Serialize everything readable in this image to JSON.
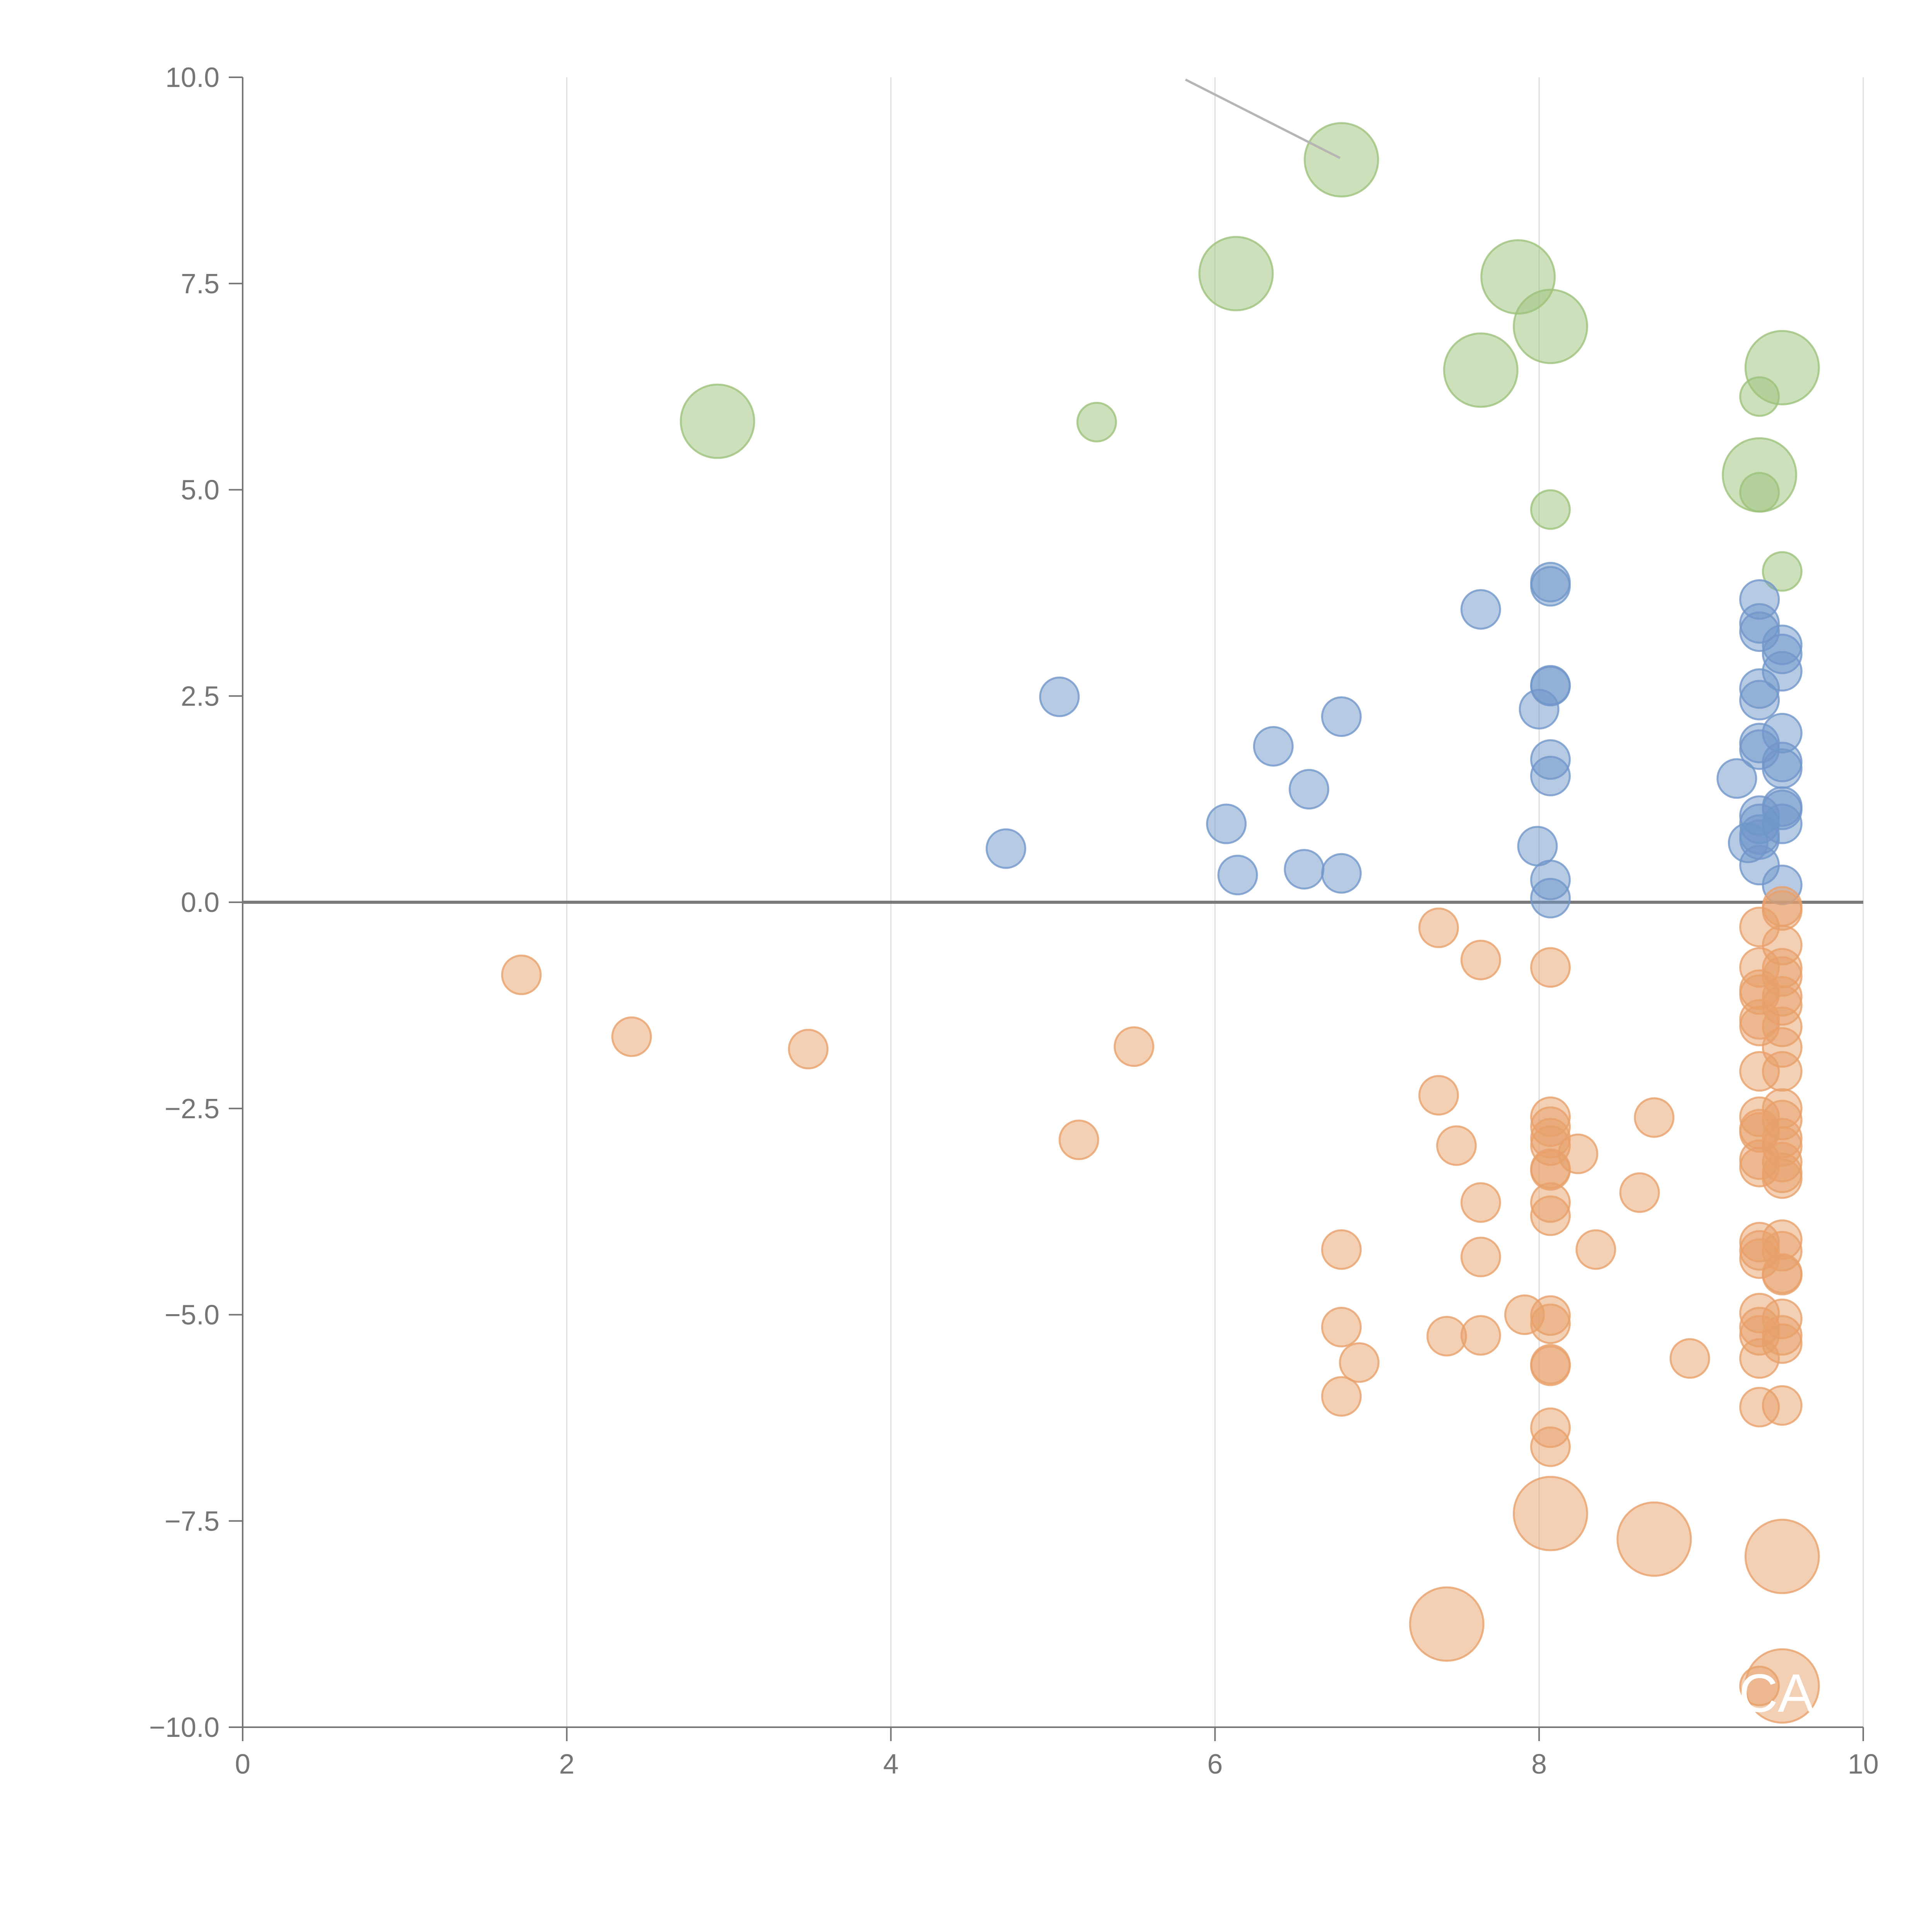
{
  "chart_data": {
    "type": "scatter",
    "title": "",
    "xlabel": "",
    "ylabel": "",
    "xlim": [
      0,
      10
    ],
    "ylim": [
      -10,
      10
    ],
    "x_ticks": [
      0,
      2,
      4,
      6,
      8,
      10
    ],
    "x_tick_labels": [
      "0",
      "2",
      "4",
      "6",
      "8",
      "10"
    ],
    "y_ticks": [
      10,
      7.5,
      5,
      2.5,
      0,
      -2.5,
      -5,
      -7.5,
      -10
    ],
    "y_tick_labels": [
      "10.0",
      "7.5",
      "5.0",
      "2.5",
      "0.0",
      "−2.5",
      "−5.0",
      "−7.5",
      "−10.0"
    ],
    "grid": "vertical",
    "zero_line": true,
    "label_text": "CA",
    "series": [
      {
        "color": "#9cc27a",
        "points": [
          [
            6.78,
            9.0,
            "l"
          ],
          [
            6.13,
            7.62,
            "l"
          ],
          [
            7.87,
            7.58,
            "l"
          ],
          [
            8.07,
            6.98,
            "l"
          ],
          [
            7.64,
            6.45,
            "l"
          ],
          [
            9.5,
            6.48,
            "l"
          ],
          [
            9.36,
            6.13,
            "s"
          ],
          [
            2.93,
            5.83,
            "l"
          ],
          [
            5.27,
            5.82,
            "s"
          ],
          [
            9.36,
            5.18,
            "l"
          ],
          [
            9.36,
            4.97,
            "s"
          ],
          [
            8.07,
            4.76,
            "s"
          ],
          [
            9.5,
            4.01,
            "s"
          ]
        ]
      },
      {
        "color": "#7096c9",
        "points": [
          [
            8.07,
            3.88,
            "s"
          ],
          [
            8.07,
            3.83,
            "s"
          ],
          [
            7.64,
            3.55,
            "s"
          ],
          [
            9.36,
            3.67,
            "s"
          ],
          [
            9.36,
            3.38,
            "s"
          ],
          [
            9.36,
            3.28,
            "s"
          ],
          [
            9.5,
            3.12,
            "s"
          ],
          [
            9.5,
            3.01,
            "s"
          ],
          [
            9.5,
            2.8,
            "s"
          ],
          [
            8.07,
            2.63,
            "s"
          ],
          [
            8.07,
            2.62,
            "s"
          ],
          [
            9.36,
            2.59,
            "s"
          ],
          [
            5.04,
            2.49,
            "s"
          ],
          [
            9.36,
            2.45,
            "s"
          ],
          [
            8.0,
            2.34,
            "s"
          ],
          [
            6.78,
            2.25,
            "s"
          ],
          [
            9.5,
            2.05,
            "s"
          ],
          [
            9.36,
            1.93,
            "s"
          ],
          [
            6.36,
            1.89,
            "s"
          ],
          [
            9.36,
            1.85,
            "s"
          ],
          [
            8.07,
            1.73,
            "s"
          ],
          [
            9.5,
            1.7,
            "s"
          ],
          [
            9.5,
            1.62,
            "s"
          ],
          [
            8.07,
            1.53,
            "s"
          ],
          [
            9.22,
            1.5,
            "s"
          ],
          [
            6.58,
            1.37,
            "s"
          ],
          [
            9.5,
            1.16,
            "s"
          ],
          [
            9.5,
            1.12,
            "s"
          ],
          [
            9.36,
            1.05,
            "s"
          ],
          [
            6.07,
            0.95,
            "s"
          ],
          [
            9.36,
            0.95,
            "s"
          ],
          [
            9.5,
            0.95,
            "s"
          ],
          [
            9.36,
            0.82,
            "s"
          ],
          [
            9.36,
            0.76,
            "s"
          ],
          [
            9.29,
            0.72,
            "s"
          ],
          [
            7.99,
            0.68,
            "s"
          ],
          [
            4.71,
            0.65,
            "s"
          ],
          [
            9.36,
            0.45,
            "s"
          ],
          [
            6.55,
            0.4,
            "s"
          ],
          [
            6.78,
            0.35,
            "s"
          ],
          [
            6.14,
            0.33,
            "s"
          ],
          [
            8.07,
            0.27,
            "s"
          ],
          [
            9.5,
            0.21,
            "s"
          ],
          [
            8.07,
            0.05,
            "s"
          ]
        ]
      },
      {
        "color": "#e8a06a",
        "points": [
          [
            9.5,
            -0.05,
            "s"
          ],
          [
            9.5,
            -0.1,
            "s"
          ],
          [
            7.38,
            -0.31,
            "s"
          ],
          [
            9.36,
            -0.3,
            "s"
          ],
          [
            9.5,
            -0.52,
            "s"
          ],
          [
            7.64,
            -0.7,
            "s"
          ],
          [
            8.07,
            -0.79,
            "s"
          ],
          [
            9.36,
            -0.79,
            "s"
          ],
          [
            9.5,
            -0.8,
            "s"
          ],
          [
            9.5,
            -0.9,
            "s"
          ],
          [
            1.72,
            -0.88,
            "s"
          ],
          [
            9.36,
            -1.06,
            "s"
          ],
          [
            9.36,
            -1.12,
            "s"
          ],
          [
            9.5,
            -1.14,
            "s"
          ],
          [
            9.5,
            -1.25,
            "s"
          ],
          [
            9.36,
            -1.42,
            "s"
          ],
          [
            9.36,
            -1.5,
            "s"
          ],
          [
            9.5,
            -1.51,
            "s"
          ],
          [
            2.4,
            -1.63,
            "s"
          ],
          [
            3.49,
            -1.78,
            "s"
          ],
          [
            5.5,
            -1.75,
            "s"
          ],
          [
            9.5,
            -1.76,
            "s"
          ],
          [
            9.36,
            -2.05,
            "s"
          ],
          [
            9.5,
            -2.05,
            "s"
          ],
          [
            7.38,
            -2.34,
            "s"
          ],
          [
            9.5,
            -2.5,
            "s"
          ],
          [
            9.36,
            -2.6,
            "s"
          ],
          [
            8.07,
            -2.6,
            "s"
          ],
          [
            8.71,
            -2.61,
            "s"
          ],
          [
            9.5,
            -2.64,
            "s"
          ],
          [
            8.07,
            -2.72,
            "s"
          ],
          [
            9.36,
            -2.75,
            "s"
          ],
          [
            9.36,
            -2.79,
            "s"
          ],
          [
            8.07,
            -2.86,
            "s"
          ],
          [
            9.5,
            -2.86,
            "s"
          ],
          [
            5.16,
            -2.88,
            "s"
          ],
          [
            8.07,
            -2.95,
            "s"
          ],
          [
            9.5,
            -2.96,
            "s"
          ],
          [
            7.49,
            -2.95,
            "s"
          ],
          [
            8.24,
            -3.05,
            "s"
          ],
          [
            9.36,
            -3.12,
            "s"
          ],
          [
            9.5,
            -3.15,
            "s"
          ],
          [
            9.36,
            -3.21,
            "s"
          ],
          [
            8.07,
            -3.23,
            "s"
          ],
          [
            8.07,
            -3.25,
            "s"
          ],
          [
            9.5,
            -3.28,
            "s"
          ],
          [
            9.5,
            -3.35,
            "s"
          ],
          [
            8.62,
            -3.52,
            "s"
          ],
          [
            7.64,
            -3.64,
            "s"
          ],
          [
            8.07,
            -3.64,
            "s"
          ],
          [
            8.07,
            -3.8,
            "s"
          ],
          [
            9.5,
            -4.09,
            "s"
          ],
          [
            9.36,
            -4.12,
            "s"
          ],
          [
            9.36,
            -4.22,
            "s"
          ],
          [
            9.5,
            -4.23,
            "s"
          ],
          [
            6.78,
            -4.21,
            "s"
          ],
          [
            8.35,
            -4.21,
            "s"
          ],
          [
            7.64,
            -4.3,
            "s"
          ],
          [
            9.36,
            -4.32,
            "s"
          ],
          [
            9.5,
            -4.5,
            "s"
          ],
          [
            9.5,
            -4.52,
            "s"
          ],
          [
            7.91,
            -5.0,
            "s"
          ],
          [
            8.07,
            -5.01,
            "s"
          ],
          [
            9.36,
            -4.98,
            "s"
          ],
          [
            9.5,
            -5.05,
            "s"
          ],
          [
            8.07,
            -5.11,
            "s"
          ],
          [
            9.36,
            -5.15,
            "s"
          ],
          [
            6.78,
            -5.15,
            "s"
          ],
          [
            9.36,
            -5.25,
            "s"
          ],
          [
            7.64,
            -5.25,
            "s"
          ],
          [
            7.43,
            -5.26,
            "s"
          ],
          [
            9.5,
            -5.25,
            "s"
          ],
          [
            9.5,
            -5.35,
            "s"
          ],
          [
            9.36,
            -5.53,
            "s"
          ],
          [
            8.93,
            -5.53,
            "s"
          ],
          [
            6.89,
            -5.58,
            "s"
          ],
          [
            8.07,
            -5.6,
            "s"
          ],
          [
            8.07,
            -5.62,
            "s"
          ],
          [
            6.78,
            -5.99,
            "s"
          ],
          [
            9.36,
            -6.12,
            "s"
          ],
          [
            9.5,
            -6.1,
            "s"
          ],
          [
            8.07,
            -6.37,
            "s"
          ],
          [
            8.07,
            -6.6,
            "s"
          ],
          [
            8.07,
            -7.41,
            "l"
          ],
          [
            8.71,
            -7.72,
            "l"
          ],
          [
            9.5,
            -7.93,
            "l"
          ],
          [
            7.43,
            -8.75,
            "l"
          ],
          [
            9.36,
            -9.5,
            "s"
          ],
          [
            9.5,
            -9.5,
            "l"
          ]
        ]
      }
    ]
  }
}
